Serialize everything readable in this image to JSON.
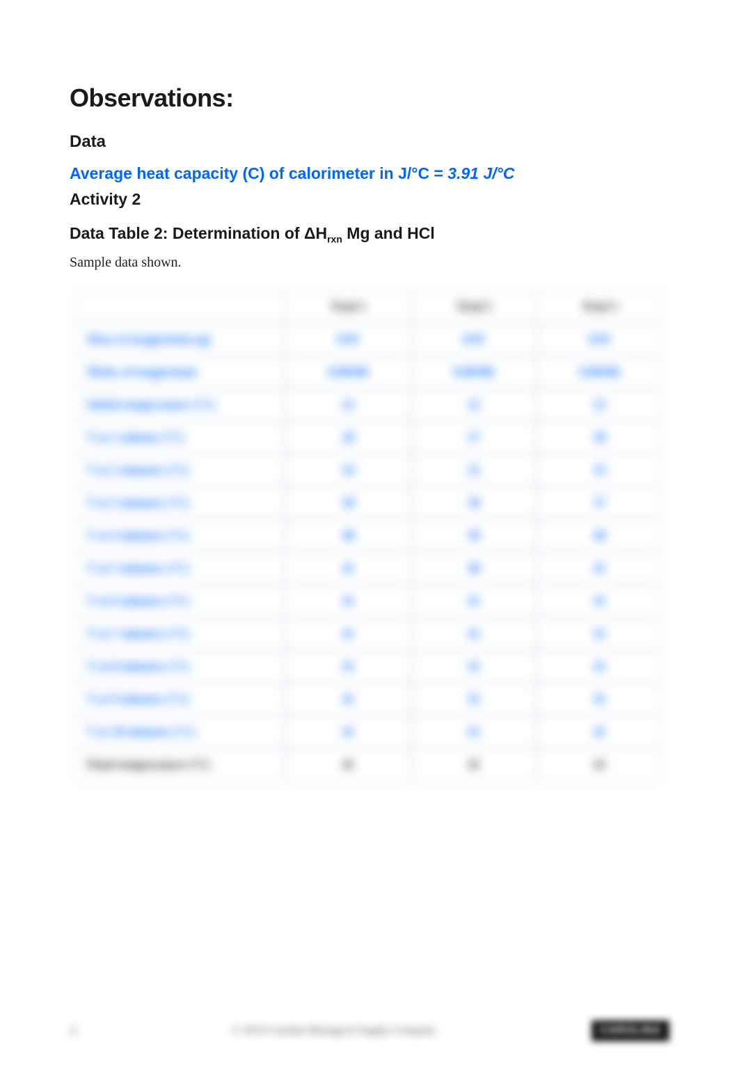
{
  "headings": {
    "observations": "Observations:",
    "data": "Data",
    "avg_heat_label": "Average heat capacity (C) of calorimeter in J/°C = ",
    "avg_heat_value": "3.91 J/°C",
    "activity": "Activity 2",
    "table_title_pre": "Data Table 2: Determination of ΔH",
    "table_title_sub": "rxn",
    "table_title_post": " Mg and HCl",
    "sample_note": "Sample data shown."
  },
  "colors": {
    "accent": "#0066ff",
    "text": "#1a1a1a",
    "border": "#cfd6e4",
    "brand_bg": "#111111",
    "brand_fg": "#ffffff"
  },
  "table": {
    "columns": [
      "",
      "Trial 1",
      "Trial 2",
      "Trial 3"
    ],
    "rows": [
      {
        "label": "Mass of magnesium (g)",
        "cells": [
          "0.05",
          "0.05",
          "0.05"
        ]
      },
      {
        "label": "Moles of magnesium",
        "cells": [
          "0.00206",
          "0.00206",
          "0.00206"
        ]
      },
      {
        "label": "Initial temperature (°C)",
        "cells": [
          "22",
          "22",
          "22"
        ]
      },
      {
        "label": "T at 1 minute (°C)",
        "cells": [
          "28",
          "27",
          "28"
        ]
      },
      {
        "label": "T at 2 minutes (°C)",
        "cells": [
          "34",
          "32",
          "33"
        ]
      },
      {
        "label": "T at 3 minutes (°C)",
        "cells": [
          "38",
          "36",
          "37"
        ]
      },
      {
        "label": "T at 4 minutes (°C)",
        "cells": [
          "40",
          "39",
          "40"
        ]
      },
      {
        "label": "T at 5 minutes (°C)",
        "cells": [
          "41",
          "40",
          "41"
        ]
      },
      {
        "label": "T at 6 minutes (°C)",
        "cells": [
          "41",
          "41",
          "41"
        ]
      },
      {
        "label": "T at 7 minutes (°C)",
        "cells": [
          "41",
          "41",
          "41"
        ]
      },
      {
        "label": "T at 8 minutes (°C)",
        "cells": [
          "41",
          "41",
          "41"
        ]
      },
      {
        "label": "T at 9 minutes (°C)",
        "cells": [
          "41",
          "41",
          "41"
        ]
      },
      {
        "label": "T at 10 minutes (°C)",
        "cells": [
          "41",
          "41",
          "41"
        ]
      },
      {
        "label": "Final temperature (°C)",
        "cells": [
          "41",
          "41",
          "41"
        ],
        "last": true
      }
    ]
  },
  "footer": {
    "page": "3",
    "copyright": "© 2019 Carolina Biological Supply Company",
    "brand": "CAROLINA"
  }
}
